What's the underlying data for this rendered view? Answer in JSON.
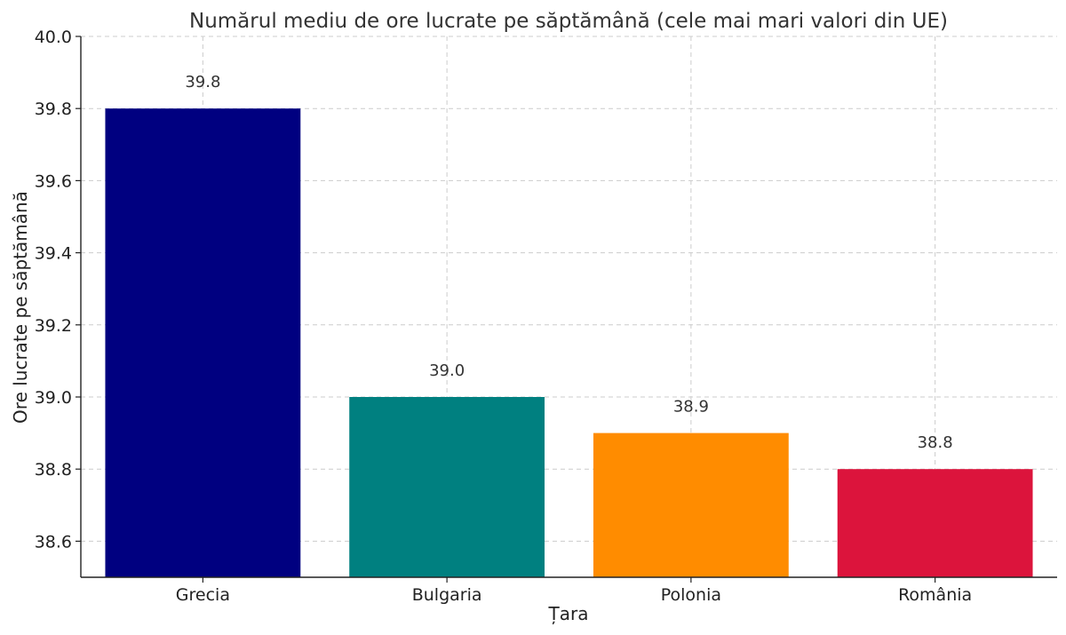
{
  "chart_data": {
    "type": "bar",
    "title": "Numărul mediu de ore lucrate pe săptămână (cele mai mari valori din UE)",
    "xlabel": "Țara",
    "ylabel": "Ore lucrate pe săptămână",
    "categories": [
      "Grecia",
      "Bulgaria",
      "Polonia",
      "România"
    ],
    "values": [
      39.8,
      39.0,
      38.9,
      38.8
    ],
    "data_labels": [
      "39.8",
      "39.0",
      "38.9",
      "38.8"
    ],
    "colors": [
      "#000080",
      "#008080",
      "#ff8c00",
      "#dc143c"
    ],
    "ylim": [
      38.5,
      40.0
    ],
    "yticks": [
      38.6,
      38.8,
      39.0,
      39.2,
      39.4,
      39.6,
      39.8,
      40.0
    ],
    "ytick_labels": [
      "38.6",
      "38.8",
      "39.0",
      "39.2",
      "39.4",
      "39.6",
      "39.8",
      "40.0"
    ],
    "grid": true
  }
}
